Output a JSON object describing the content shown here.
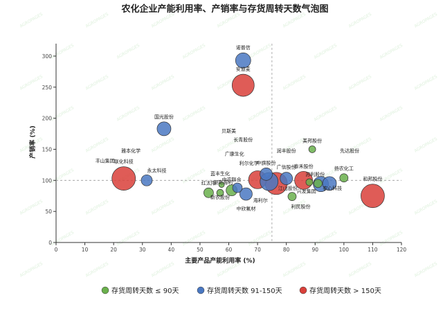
{
  "chart_data": {
    "type": "scatter",
    "title": "农化企业产能利用率、产销率与存货周转天数气泡图",
    "xlabel": "主要产品产能利用率 (%)",
    "ylabel": "产销率 (%)",
    "xlim": [
      0,
      120
    ],
    "ylim": [
      0,
      320
    ],
    "x_ticks": [
      0,
      10,
      20,
      30,
      40,
      50,
      60,
      70,
      80,
      90,
      100,
      110,
      120
    ],
    "y_ticks": [
      0,
      50,
      100,
      150,
      200,
      250,
      300
    ],
    "reference_lines": {
      "x": 75,
      "y": 100
    },
    "legend_position": "bottom",
    "grid": false,
    "watermark": "AGROPAGES",
    "categories": [
      {
        "key": "low",
        "label": "存货周转天数 ≤ 90天",
        "color": "#6ab04c"
      },
      {
        "key": "mid",
        "label": "存货周转天数 91-150天",
        "color": "#4a78c2"
      },
      {
        "key": "high",
        "label": "存货周转天数 > 150天",
        "color": "#d9403a"
      }
    ],
    "points": [
      {
        "name": "诺普信",
        "x": 65,
        "y": 293,
        "size": 11,
        "category": "mid"
      },
      {
        "name": "安道麦",
        "x": 65,
        "y": 253,
        "size": 16,
        "category": "high"
      },
      {
        "name": "国光股份",
        "x": 37.5,
        "y": 183,
        "size": 10,
        "category": "mid"
      },
      {
        "name": "贝斯美",
        "x": 60,
        "y": 177,
        "size": 0,
        "category": "low"
      },
      {
        "name": "长青股份",
        "x": 65,
        "y": 163,
        "size": 0,
        "category": "low"
      },
      {
        "name": "雅本化学",
        "x": 26,
        "y": 145,
        "size": 0,
        "category": "low"
      },
      {
        "name": "润丰股份",
        "x": 80,
        "y": 145,
        "size": 0,
        "category": "low"
      },
      {
        "name": "美邦股份",
        "x": 89,
        "y": 150,
        "size": 5,
        "category": "low"
      },
      {
        "name": "先达股份",
        "x": 102,
        "y": 145,
        "size": 0,
        "category": "low"
      },
      {
        "name": "广康生化",
        "x": 62,
        "y": 140,
        "size": 0,
        "category": "low"
      },
      {
        "name": "丰山集团",
        "x": 17,
        "y": 129,
        "size": 0,
        "category": "low"
      },
      {
        "name": "利尔化学",
        "x": 67,
        "y": 125,
        "size": 0,
        "category": "low"
      },
      {
        "name": "中旗股份",
        "x": 73,
        "y": 110,
        "size": 9,
        "category": "mid"
      },
      {
        "name": "广信股份",
        "x": 80,
        "y": 103,
        "size": 9,
        "category": "mid"
      },
      {
        "name": "苏利股份",
        "x": 90,
        "y": 107,
        "size": 0,
        "category": "low"
      },
      {
        "name": "扬农化工",
        "x": 100,
        "y": 104,
        "size": 6,
        "category": "low"
      },
      {
        "name": "永太科技",
        "x": 35,
        "y": 113,
        "size": 0,
        "category": "low"
      },
      {
        "name": "蓝丰生化",
        "x": 57,
        "y": 108,
        "size": 0,
        "category": "low"
      },
      {
        "name": "湖南海利",
        "x": 58,
        "y": 94,
        "size": 0,
        "category": "low"
      },
      {
        "name": "泰禾股份",
        "x": 86,
        "y": 100,
        "size": 13,
        "category": "high"
      },
      {
        "name": "和邦股份",
        "x": 110,
        "y": 75,
        "size": 17,
        "category": "high"
      },
      {
        "name": "联化科技",
        "x": 23.5,
        "y": 103,
        "size": 17,
        "category": "high"
      },
      {
        "name": "",
        "x": 31.5,
        "y": 100,
        "size": 8,
        "category": "mid"
      },
      {
        "name": "红太阳",
        "x": 53,
        "y": 80,
        "size": 7,
        "category": "low"
      },
      {
        "name": "",
        "x": 57.5,
        "y": 93,
        "size": 4,
        "category": "low"
      },
      {
        "name": "",
        "x": 57,
        "y": 80,
        "size": 5,
        "category": "low"
      },
      {
        "name": "新农股份",
        "x": 57,
        "y": 70,
        "size": 0,
        "category": "low"
      },
      {
        "name": "中农联合",
        "x": 61,
        "y": 84,
        "size": 8,
        "category": "low"
      },
      {
        "name": "",
        "x": 63,
        "y": 88,
        "size": 7,
        "category": "mid"
      },
      {
        "name": "",
        "x": 66,
        "y": 78,
        "size": 9,
        "category": "mid"
      },
      {
        "name": "海利尔",
        "x": 71,
        "y": 65,
        "size": 0,
        "category": "low"
      },
      {
        "name": "中欣氟材",
        "x": 66,
        "y": 52,
        "size": 0,
        "category": "low"
      },
      {
        "name": "",
        "x": 70,
        "y": 101,
        "size": 13,
        "category": "high"
      },
      {
        "name": "",
        "x": 74,
        "y": 98,
        "size": 13,
        "category": "mid"
      },
      {
        "name": "",
        "x": 76.5,
        "y": 95,
        "size": 16,
        "category": "high"
      },
      {
        "name": "江山股份",
        "x": 80.5,
        "y": 85,
        "size": 0,
        "category": "low"
      },
      {
        "name": "",
        "x": 82,
        "y": 74,
        "size": 6,
        "category": "low"
      },
      {
        "name": "兴发集团",
        "x": 87,
        "y": 80,
        "size": 0,
        "category": "low"
      },
      {
        "name": "",
        "x": 88,
        "y": 97,
        "size": 5,
        "category": "low"
      },
      {
        "name": "",
        "x": 91,
        "y": 95,
        "size": 6,
        "category": "low"
      },
      {
        "name": "",
        "x": 92,
        "y": 94,
        "size": 11,
        "category": "mid"
      },
      {
        "name": "",
        "x": 95,
        "y": 95,
        "size": 10,
        "category": "mid"
      },
      {
        "name": "农心科技",
        "x": 96,
        "y": 85,
        "size": 0,
        "category": "low"
      },
      {
        "name": "利民股份",
        "x": 85,
        "y": 55,
        "size": 0,
        "category": "low"
      }
    ]
  }
}
